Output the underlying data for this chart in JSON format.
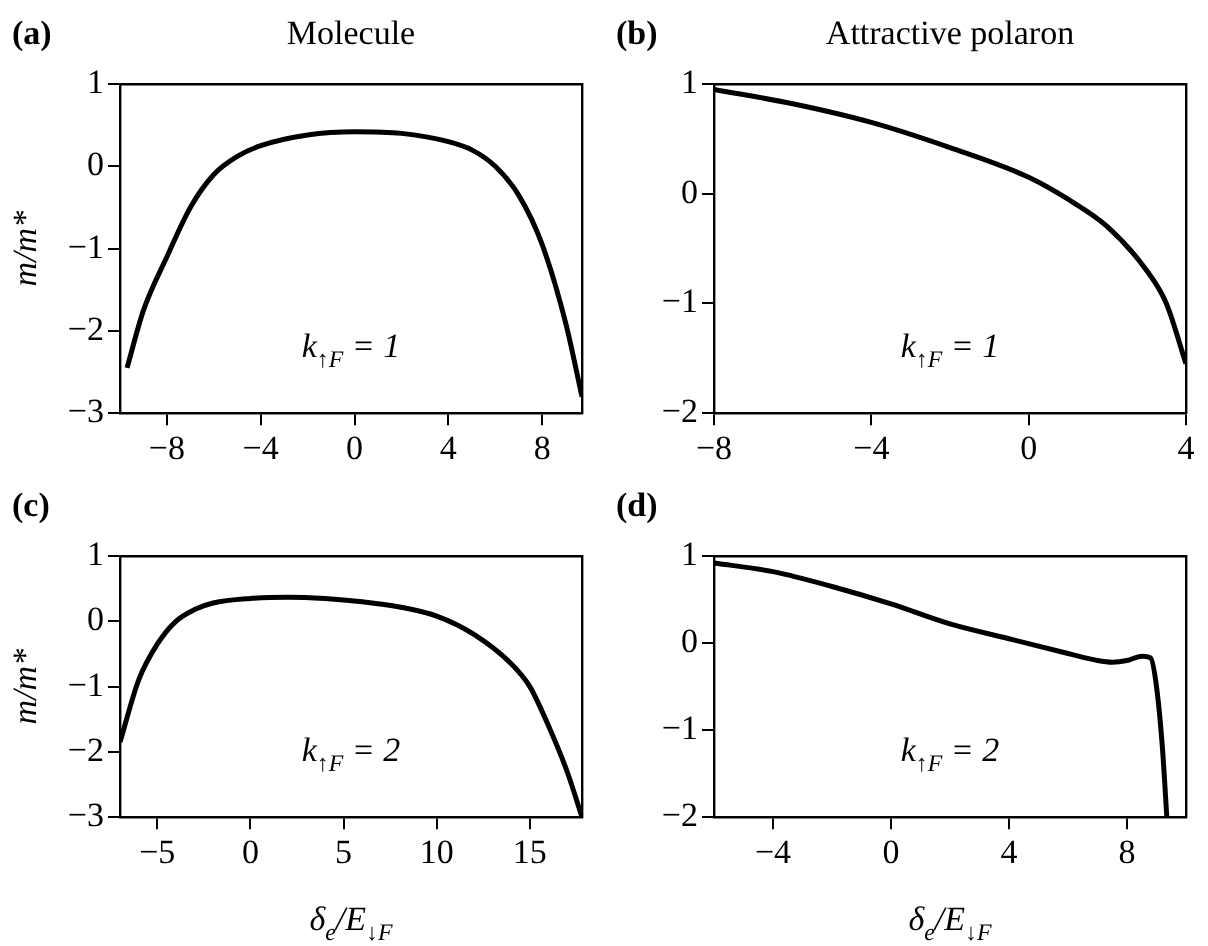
{
  "chart_data": [
    {
      "type": "line",
      "title": "Molecule",
      "ylabel": "m/m*",
      "annotations": [
        "(a)",
        "k$_{↑F}$ = 1"
      ],
      "xlim": [
        -10,
        9.7
      ],
      "xticks": [
        -8,
        -4,
        0,
        4,
        8
      ],
      "ylim": [
        -3,
        1
      ],
      "yticks": [
        -3,
        -2,
        -1,
        0,
        1
      ],
      "grid": false,
      "legend": false,
      "series": [
        {
          "color": "#000000",
          "x": [
            -9.7,
            -9,
            -8,
            -7,
            -6,
            -5,
            -4,
            -2,
            0,
            2,
            4,
            5,
            6,
            7,
            8,
            9,
            9.7
          ],
          "values": [
            -2.45,
            -1.75,
            -1.1,
            -0.5,
            -0.1,
            0.12,
            0.25,
            0.38,
            0.42,
            0.4,
            0.3,
            0.2,
            0.0,
            -0.35,
            -0.95,
            -1.9,
            -2.8
          ]
        }
      ]
    },
    {
      "type": "line",
      "title": "Attractive polaron",
      "annotations": [
        "(b)",
        "k$_{↑F}$ = 1"
      ],
      "xlim": [
        -8,
        4
      ],
      "xticks": [
        -8,
        -4,
        0,
        4
      ],
      "ylim": [
        -2,
        1
      ],
      "yticks": [
        -2,
        -1,
        0,
        1
      ],
      "grid": false,
      "legend": false,
      "series": [
        {
          "color": "#000000",
          "x": [
            -8,
            -6,
            -4,
            -2,
            0,
            1,
            2,
            3,
            3.5,
            4
          ],
          "values": [
            0.95,
            0.82,
            0.65,
            0.42,
            0.15,
            -0.05,
            -0.3,
            -0.7,
            -1.0,
            -1.55
          ]
        }
      ]
    },
    {
      "type": "line",
      "xlabel": "δ$_{e}$/E$_{↓F}$",
      "ylabel": "m/m*",
      "annotations": [
        "(c)",
        "k$_{↑F}$ = 2"
      ],
      "xlim": [
        -7,
        17.8
      ],
      "xticks": [
        -5,
        0,
        5,
        10,
        15
      ],
      "ylim": [
        -3,
        1
      ],
      "yticks": [
        -3,
        -2,
        -1,
        0,
        1
      ],
      "grid": false,
      "legend": false,
      "series": [
        {
          "color": "#000000",
          "x": [
            -7,
            -6,
            -5,
            -4,
            -3,
            -2,
            0,
            2,
            4,
            6,
            8,
            10,
            12,
            14,
            15,
            16,
            17,
            17.8
          ],
          "values": [
            -1.85,
            -0.9,
            -0.35,
            0,
            0.18,
            0.28,
            0.35,
            0.37,
            0.35,
            0.3,
            0.22,
            0.08,
            -0.2,
            -0.65,
            -1.0,
            -1.6,
            -2.3,
            -3.0
          ]
        }
      ]
    },
    {
      "type": "line",
      "xlabel": "δ$_{e}$/E$_{↓F}$",
      "annotations": [
        "(d)",
        "k$_{↑F}$ = 2"
      ],
      "xlim": [
        -6,
        10
      ],
      "xticks": [
        -4,
        0,
        4,
        8
      ],
      "ylim": [
        -2,
        1
      ],
      "yticks": [
        -2,
        -1,
        0,
        1
      ],
      "grid": false,
      "legend": false,
      "series": [
        {
          "color": "#000000",
          "x": [
            -6,
            -4,
            -2,
            0,
            2,
            4,
            6,
            7,
            7.5,
            8,
            8.5,
            8.8,
            9.0,
            9.2,
            9.35
          ],
          "values": [
            0.92,
            0.82,
            0.65,
            0.45,
            0.22,
            0.05,
            -0.12,
            -0.2,
            -0.22,
            -0.2,
            -0.15,
            -0.17,
            -0.5,
            -1.2,
            -2.0
          ]
        }
      ]
    }
  ]
}
